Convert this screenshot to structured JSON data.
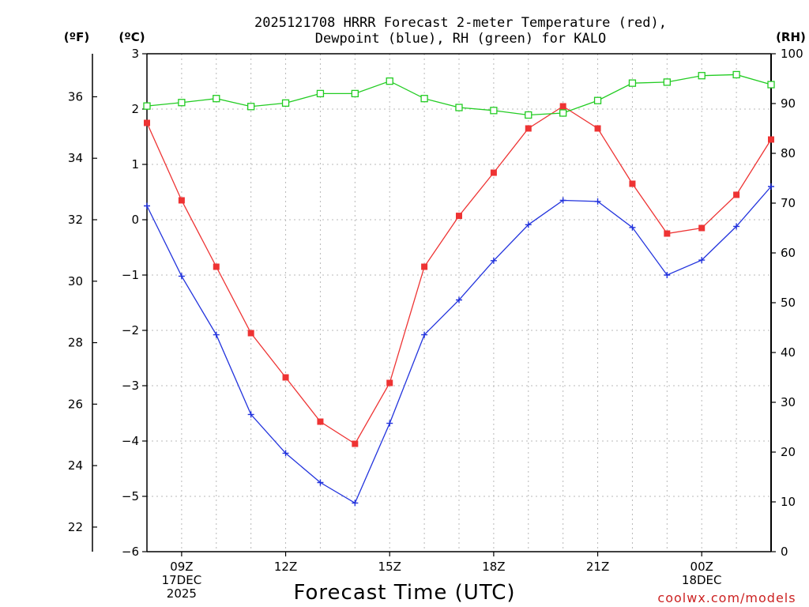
{
  "chart_data": {
    "type": "line",
    "title": [
      "2025121708 HRRR Forecast 2-meter Temperature (red),",
      "Dewpoint (blue), RH (green) for KALO"
    ],
    "xlabel": "Forecast Time (UTC)",
    "credit": "coolwx.com/models",
    "units": {
      "fahrenheit": "(ºF)",
      "celsius": "(ºC)",
      "rh": "(RH)"
    },
    "x_hours": [
      8,
      9,
      10,
      11,
      12,
      13,
      14,
      15,
      16,
      17,
      18,
      19,
      20,
      21,
      22,
      23,
      24,
      25,
      26
    ],
    "xlim": [
      8,
      26
    ],
    "x_ticks": [
      {
        "hour": 9,
        "lines": [
          "09Z",
          "17DEC",
          "2025"
        ]
      },
      {
        "hour": 12,
        "lines": [
          "12Z"
        ]
      },
      {
        "hour": 15,
        "lines": [
          "15Z"
        ]
      },
      {
        "hour": 18,
        "lines": [
          "18Z"
        ]
      },
      {
        "hour": 21,
        "lines": [
          "21Z"
        ]
      },
      {
        "hour": 24,
        "lines": [
          "00Z",
          "18DEC"
        ]
      }
    ],
    "y_celsius": {
      "lim": [
        -6,
        3
      ],
      "ticks": [
        "3",
        "2",
        "1",
        "0",
        "−1",
        "−2",
        "−3",
        "−4",
        "−5",
        "−6"
      ]
    },
    "y_fahrenheit": {
      "ticks": [
        "36",
        "34",
        "32",
        "30",
        "28",
        "26",
        "24",
        "22"
      ]
    },
    "y_rh": {
      "lim": [
        0,
        100
      ],
      "ticks": [
        "100",
        "90",
        "80",
        "70",
        "60",
        "50",
        "40",
        "30",
        "20",
        "10",
        "0"
      ]
    },
    "series": [
      {
        "name": "Temperature",
        "axis": "celsius",
        "color": "#ee3333",
        "marker": "filled-square",
        "values": [
          1.75,
          0.35,
          -0.85,
          -2.05,
          -2.85,
          -3.65,
          -4.05,
          -2.95,
          -0.85,
          0.07,
          0.85,
          1.65,
          2.05,
          1.65,
          0.65,
          -0.25,
          -0.15,
          0.45,
          1.45
        ]
      },
      {
        "name": "Dewpoint",
        "axis": "celsius",
        "color": "#2233dd",
        "marker": "plus",
        "values": [
          0.25,
          -1.02,
          -2.08,
          -3.52,
          -4.22,
          -4.75,
          -5.12,
          -3.68,
          -2.08,
          -1.45,
          -0.74,
          -0.09,
          0.35,
          0.33,
          -0.14,
          -1.0,
          -0.73,
          -0.12,
          0.6
        ]
      },
      {
        "name": "RH",
        "axis": "rh",
        "color": "#22cc22",
        "marker": "open-square",
        "values": [
          89.5,
          90.2,
          91.0,
          89.4,
          90.1,
          92.0,
          92.0,
          94.5,
          91.0,
          89.2,
          88.6,
          87.7,
          88.1,
          90.6,
          94.1,
          94.3,
          95.6,
          95.8,
          93.8
        ]
      }
    ]
  }
}
